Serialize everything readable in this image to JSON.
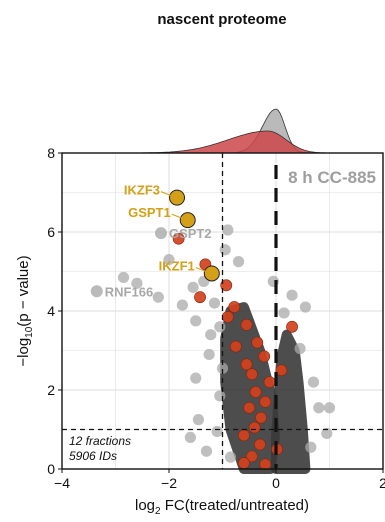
{
  "chart_data": {
    "type": "scatter",
    "title": "nascent proteome",
    "condition": "8 h CC-885",
    "xlabel_parts": {
      "prefix": "log",
      "sub": "2",
      "suffix": " FC(treated/untreated)"
    },
    "ylabel_parts": {
      "prefix": "−log",
      "sub": "10",
      "suffix": "(p − value)"
    },
    "xlim": [
      -4,
      2
    ],
    "ylim": [
      0,
      8
    ],
    "x_ticks": [
      -4,
      -2,
      0,
      2
    ],
    "y_ticks": [
      0,
      2,
      4,
      6,
      8
    ],
    "x_tick_labels": [
      "−4",
      "−2",
      "0",
      "2"
    ],
    "y_tick_labels": [
      "0",
      "2",
      "4",
      "6",
      "8"
    ],
    "grid": true,
    "thresholds": {
      "log2fc": -1,
      "neg_log10_p": 1,
      "zero_line": 0
    },
    "annotation_lines": [
      "12 fractions",
      "5906 IDs"
    ],
    "labeled_hits": [
      {
        "label": "IKZF3",
        "x": -1.85,
        "y": 6.87
      },
      {
        "label": "GSPT1",
        "x": -1.65,
        "y": 6.3
      },
      {
        "label": "IKZF1",
        "x": -1.2,
        "y": 4.95
      }
    ],
    "labeled_other": [
      {
        "label": "GSPT2",
        "x": -2.15,
        "y": 5.97
      },
      {
        "label": "RNF166",
        "x": -3.35,
        "y": 4.5
      }
    ],
    "highlighted_points": [
      {
        "x": -1.82,
        "y": 5.83
      },
      {
        "x": -1.32,
        "y": 5.18
      },
      {
        "x": -0.93,
        "y": 4.65
      },
      {
        "x": -1.42,
        "y": 4.35
      },
      {
        "x": -0.78,
        "y": 4.1
      },
      {
        "x": -0.9,
        "y": 3.85
      },
      {
        "x": -0.55,
        "y": 3.65
      },
      {
        "x": -0.35,
        "y": 3.2
      },
      {
        "x": -0.75,
        "y": 3.1
      },
      {
        "x": -0.22,
        "y": 2.85
      },
      {
        "x": -0.55,
        "y": 2.65
      },
      {
        "x": -0.45,
        "y": 2.4
      },
      {
        "x": -0.12,
        "y": 2.2
      },
      {
        "x": -0.38,
        "y": 1.95
      },
      {
        "x": -0.2,
        "y": 1.7
      },
      {
        "x": -0.5,
        "y": 1.55
      },
      {
        "x": -0.28,
        "y": 1.3
      },
      {
        "x": -0.4,
        "y": 1.05
      },
      {
        "x": -0.6,
        "y": 0.85
      },
      {
        "x": -0.3,
        "y": 0.62
      },
      {
        "x": -0.45,
        "y": 0.32
      },
      {
        "x": -0.6,
        "y": 0.15
      },
      {
        "x": -0.2,
        "y": 0.12
      },
      {
        "x": 0.3,
        "y": 3.6
      },
      {
        "x": 0.1,
        "y": 2.5
      },
      {
        "x": 0.02,
        "y": 0.5
      }
    ],
    "background_points": [
      {
        "x": -2.85,
        "y": 4.85
      },
      {
        "x": -2.6,
        "y": 4.7
      },
      {
        "x": -2.2,
        "y": 4.35
      },
      {
        "x": -2.0,
        "y": 5.3
      },
      {
        "x": -1.75,
        "y": 4.15
      },
      {
        "x": -1.55,
        "y": 4.6
      },
      {
        "x": -1.5,
        "y": 3.75
      },
      {
        "x": -1.35,
        "y": 4.75
      },
      {
        "x": -1.22,
        "y": 3.4
      },
      {
        "x": -1.25,
        "y": 2.9
      },
      {
        "x": -1.15,
        "y": 4.2
      },
      {
        "x": -1.05,
        "y": 3.6
      },
      {
        "x": -1.5,
        "y": 2.3
      },
      {
        "x": -1.0,
        "y": 2.55
      },
      {
        "x": -1.45,
        "y": 1.25
      },
      {
        "x": -1.05,
        "y": 1.85
      },
      {
        "x": -0.95,
        "y": 5.55
      },
      {
        "x": -0.9,
        "y": 6.05
      },
      {
        "x": -0.7,
        "y": 5.25
      },
      {
        "x": -1.1,
        "y": 0.95
      },
      {
        "x": -1.3,
        "y": 0.45
      },
      {
        "x": -0.85,
        "y": 0.3
      },
      {
        "x": -1.6,
        "y": 0.8
      },
      {
        "x": 0.3,
        "y": 4.4
      },
      {
        "x": 0.55,
        "y": 4.1
      },
      {
        "x": 0.45,
        "y": 3.05
      },
      {
        "x": 0.7,
        "y": 2.2
      },
      {
        "x": 0.8,
        "y": 1.55
      },
      {
        "x": 1.0,
        "y": 1.55
      },
      {
        "x": 0.95,
        "y": 0.9
      },
      {
        "x": 0.65,
        "y": 0.55
      },
      {
        "x": -0.05,
        "y": 4.75
      },
      {
        "x": 0.15,
        "y": 3.95
      }
    ],
    "marginal_density": {
      "peak_position": 0,
      "series": [
        {
          "color": "#b3b3b3"
        },
        {
          "color": "#cd4548"
        }
      ]
    },
    "colors": {
      "hit": "#d4a017",
      "highlight": "#d2401c",
      "background": "#a9a9a9",
      "bulk": "#3a3a3a"
    }
  }
}
